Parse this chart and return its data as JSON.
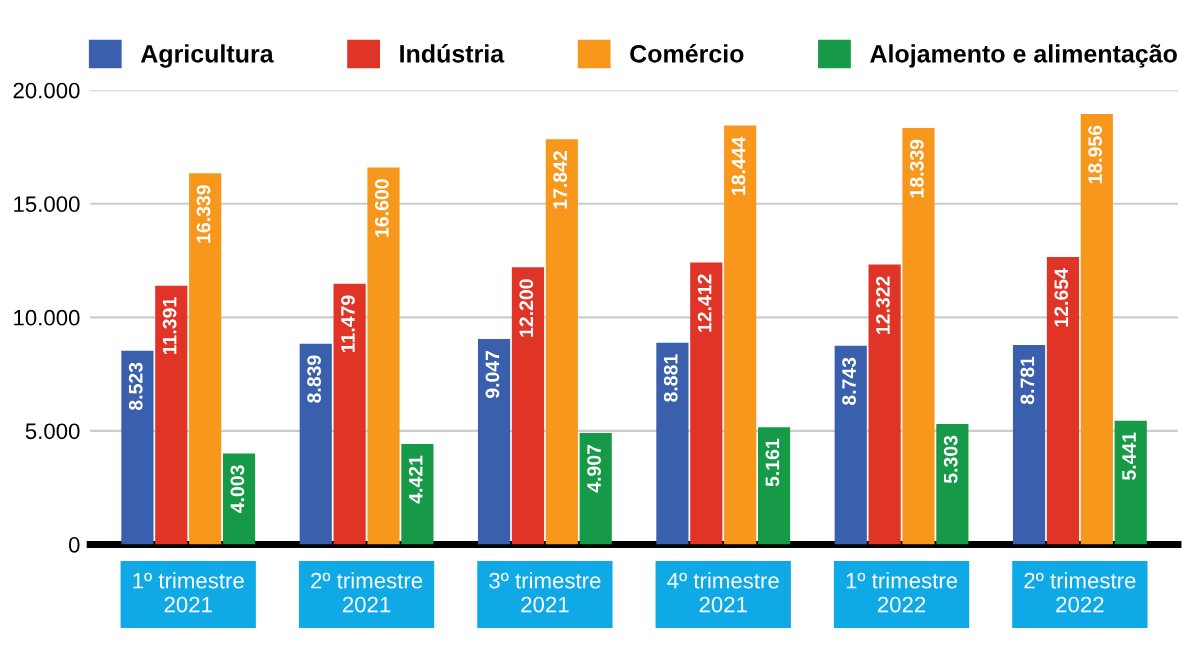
{
  "chart_data": {
    "type": "bar",
    "categories": [
      "1º trimestre\n2021",
      "2º trimestre\n2021",
      "3º trimestre\n2021",
      "4º trimestre\n2021",
      "1º trimestre\n2022",
      "2º trimestre\n2022"
    ],
    "series": [
      {
        "name": "Agricultura",
        "color": "#3a5fad",
        "values": [
          8523,
          8839,
          9047,
          8881,
          8743,
          8781
        ],
        "value_labels": [
          "8.523",
          "8.839",
          "9.047",
          "8.881",
          "8.743",
          "8.781"
        ]
      },
      {
        "name": "Indústria",
        "color": "#e03426",
        "values": [
          11391,
          11479,
          12200,
          12412,
          12322,
          12654
        ],
        "value_labels": [
          "11.391",
          "11.479",
          "12.200",
          "12.412",
          "12.322",
          "12.654"
        ]
      },
      {
        "name": "Comércio",
        "color": "#f7981d",
        "values": [
          16339,
          16600,
          17842,
          18444,
          18339,
          18956
        ],
        "value_labels": [
          "16.339",
          "16.600",
          "17.842",
          "18.444",
          "18.339",
          "18.956"
        ]
      },
      {
        "name": "Alojamento e alimentação",
        "color": "#179a48",
        "values": [
          4003,
          4421,
          4907,
          5161,
          5303,
          5441
        ],
        "value_labels": [
          "4.003",
          "4.421",
          "4.907",
          "5.161",
          "5.303",
          "5.441"
        ]
      }
    ],
    "ylim": [
      0,
      20000
    ],
    "yticks": [
      0,
      {
        "value": 5000,
        "label": "5.000"
      },
      {
        "value": 10000,
        "label": "10.000"
      },
      {
        "value": 15000,
        "label": "15.000"
      },
      {
        "value": 20000,
        "label": "20.000"
      }
    ],
    "grid": "y",
    "legend": "top"
  }
}
